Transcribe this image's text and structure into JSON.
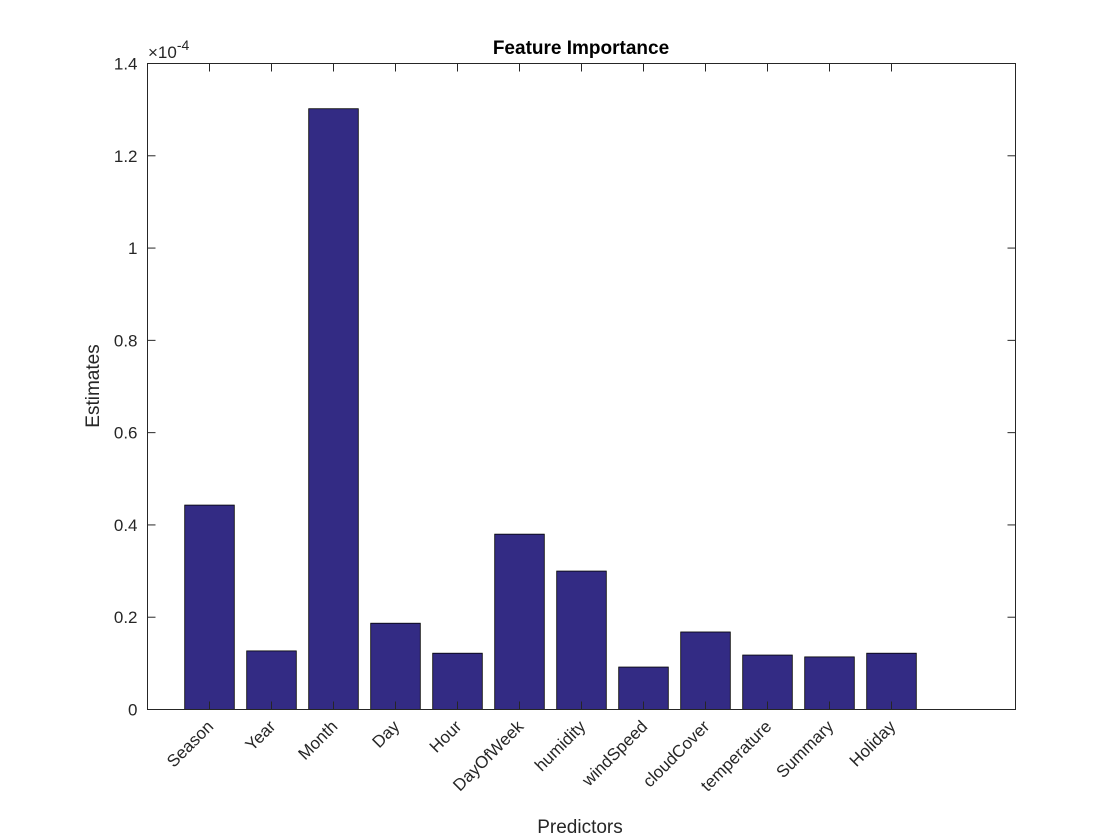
{
  "chart_data": {
    "type": "bar",
    "title": "Feature Importance",
    "xlabel": "Predictors",
    "ylabel": "Estimates",
    "exponent_label": "×10",
    "exponent_power": "-4",
    "categories": [
      "Season",
      "Year",
      "Month",
      "Day",
      "Hour",
      "DayOfWeek",
      "humidity",
      "windSpeed",
      "cloudCover",
      "temperature",
      "Summary",
      "Holiday"
    ],
    "values": [
      0.443,
      0.127,
      1.302,
      0.187,
      0.122,
      0.38,
      0.3,
      0.092,
      0.168,
      0.118,
      0.114,
      0.122
    ],
    "value_scale": "1e-4",
    "ylim": [
      0,
      1.4
    ],
    "yticks": [
      0,
      0.2,
      0.4,
      0.6,
      0.8,
      1,
      1.2,
      1.4
    ],
    "ytick_labels": [
      "0",
      "0.2",
      "0.4",
      "0.6",
      "0.8",
      "1",
      "1.2",
      "1.4"
    ],
    "grid": false,
    "bar_color": "#332b84",
    "edge_color": "#000000"
  }
}
